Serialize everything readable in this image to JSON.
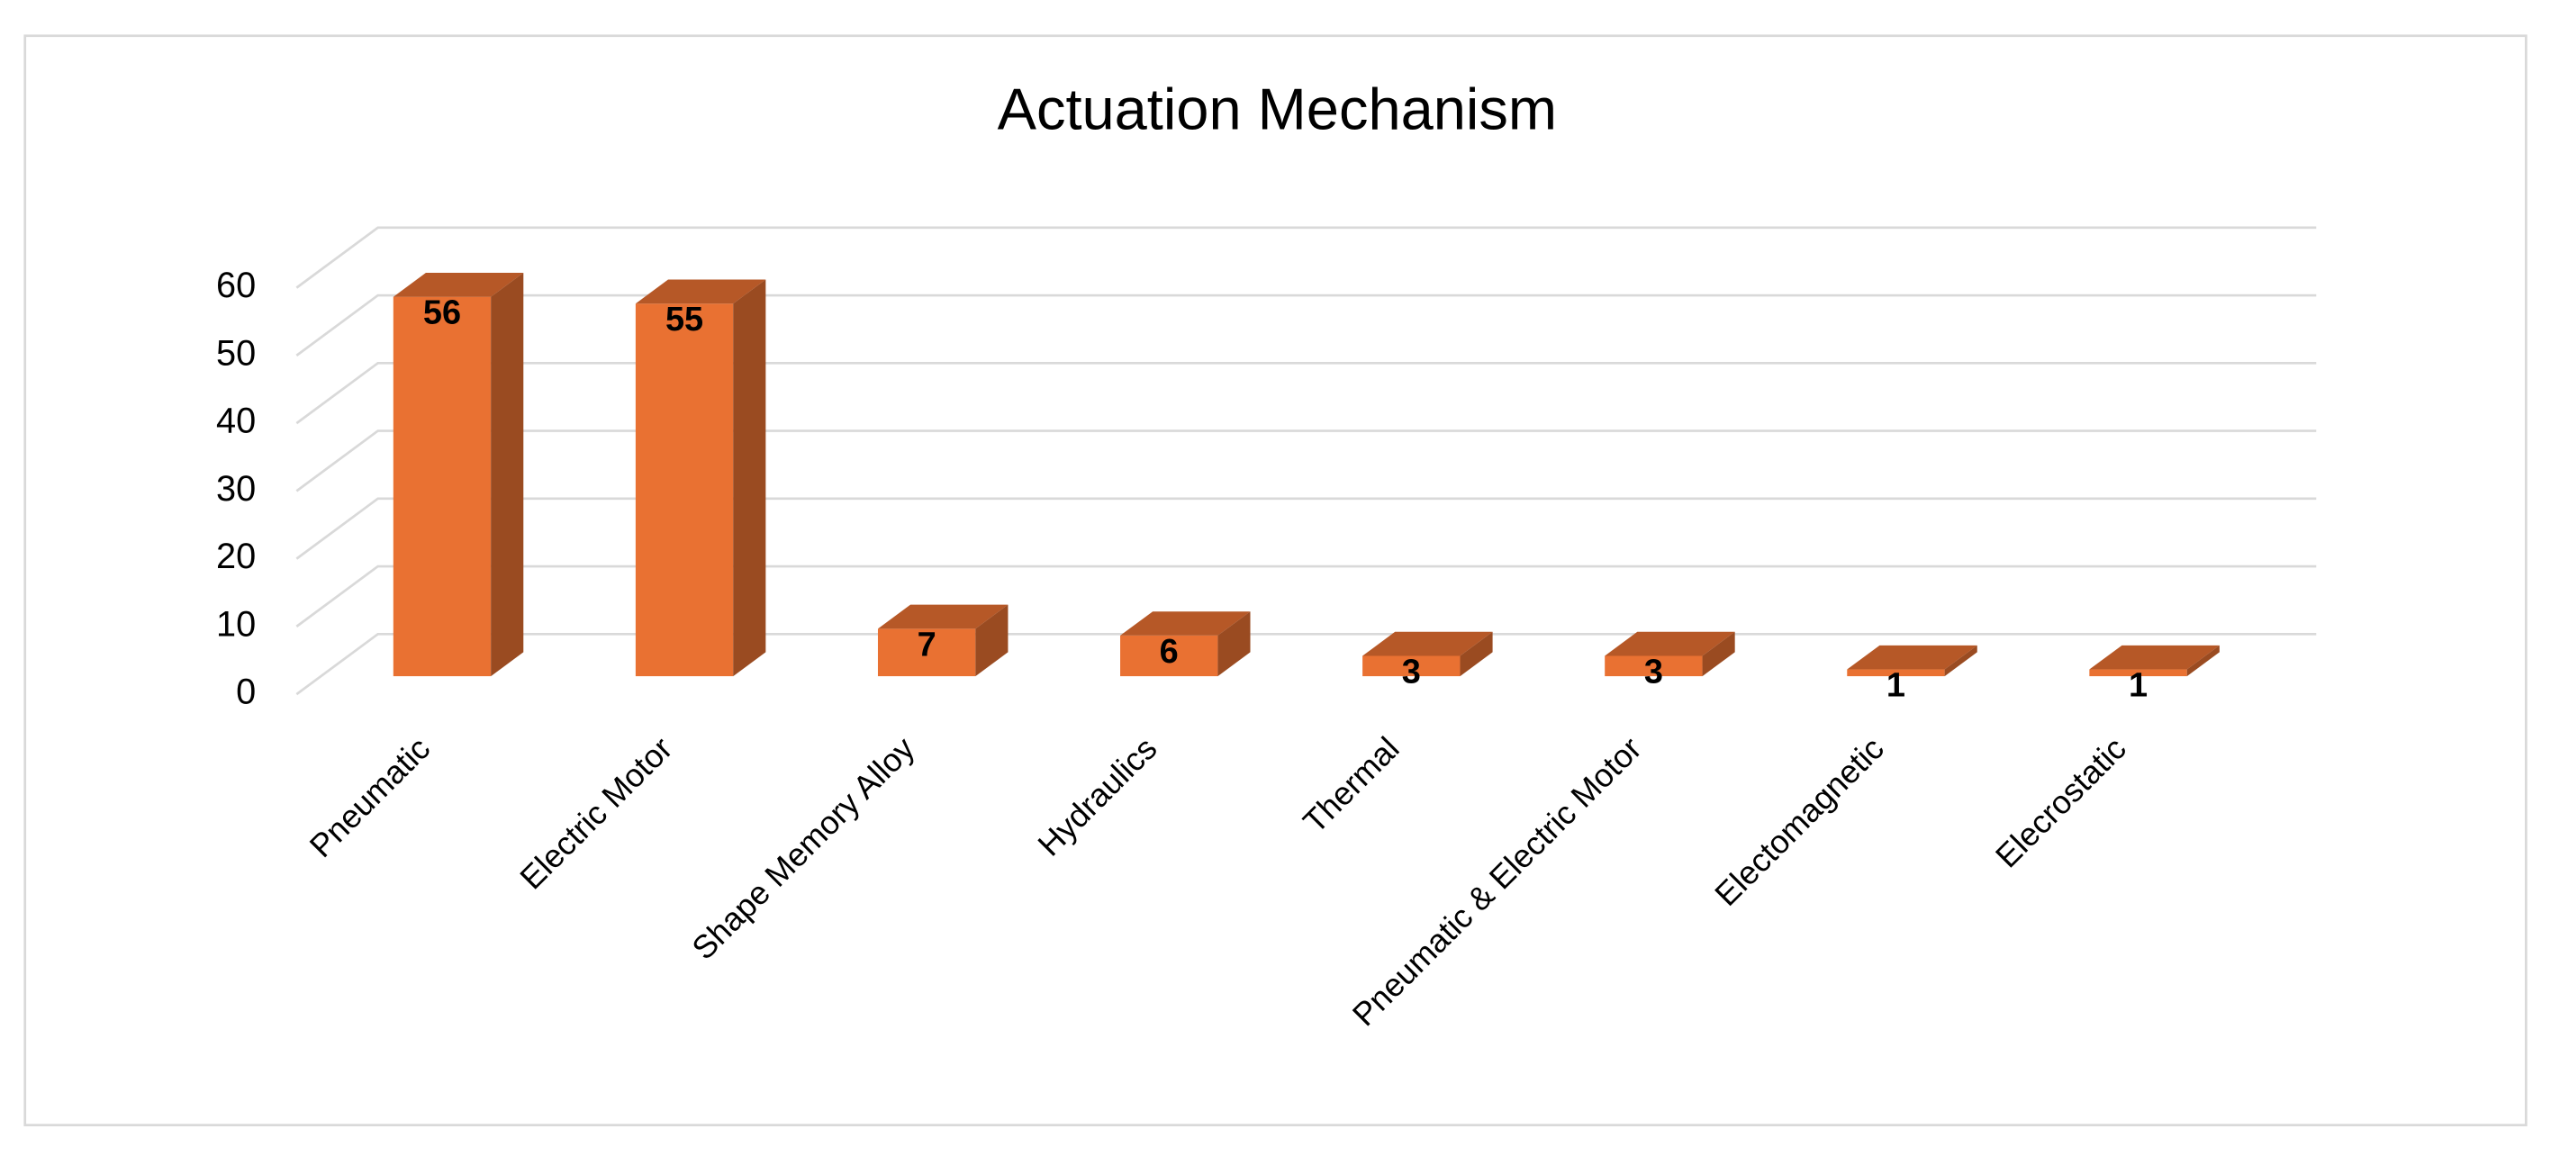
{
  "chart_data": {
    "type": "bar3d",
    "title": "Actuation Mechanism",
    "categories": [
      "Pneumatic",
      "Electric Motor",
      "Shape Memory Alloy",
      "Hydraulics",
      "Thermal",
      "Pneumatic & Electric Motor",
      "Electomagnetic",
      "Elecrostatic"
    ],
    "values": [
      56,
      55,
      7,
      6,
      3,
      3,
      1,
      1
    ],
    "color": "#e97132",
    "ylim": [
      0,
      60
    ],
    "yticks": [
      0,
      10,
      20,
      30,
      40,
      50,
      60
    ],
    "grid": true
  }
}
